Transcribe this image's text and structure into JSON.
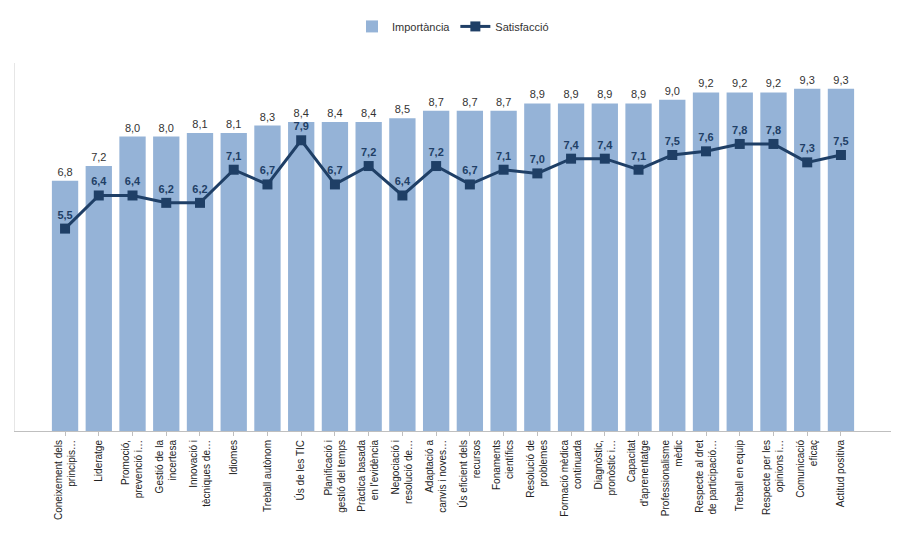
{
  "chart_data": {
    "type": "bar",
    "categories": [
      "Coneixement dels principis…",
      "Lideratge",
      "Promoció, prevenció i…",
      "Gestió de la incertesa",
      "Innovació i tècniques de…",
      "Idiomes",
      "Treball autònom",
      "Ús de les TIC",
      "Planificació i gestió del temps",
      "Pràctica basada en l'evidència",
      "Negociació i resolució de…",
      "Adaptació a canvis i noves…",
      "Ús eficient dels recursos",
      "Fonaments científics",
      "Resolució de problemes",
      "Formació mèdica continuada",
      "Diagnòstic, pronòstic i…",
      "Capacitat d'aprenentatge",
      "Professionalisme mèdic",
      "Respecte al dret de participació…",
      "Treball en equip",
      "Respecte per les opinions i…",
      "Comunicació eficaç",
      "Actitud positiva"
    ],
    "series": [
      {
        "name": "Importància",
        "type": "bar",
        "color": "#95b3d7",
        "values": [
          6.8,
          7.2,
          8.0,
          8.0,
          8.1,
          8.1,
          8.3,
          8.4,
          8.4,
          8.4,
          8.5,
          8.7,
          8.7,
          8.7,
          8.9,
          8.9,
          8.9,
          8.9,
          9.0,
          9.2,
          9.2,
          9.2,
          9.3,
          9.3
        ],
        "value_labels": [
          "6,8",
          "7,2",
          "8,0",
          "8,0",
          "8,1",
          "8,1",
          "8,3",
          "8,4",
          "8,4",
          "8,4",
          "8,5",
          "8,7",
          "8,7",
          "8,7",
          "8,9",
          "8,9",
          "8,9",
          "8,9",
          "9,0",
          "9,2",
          "9,2",
          "9,2",
          "9,3",
          "9,3"
        ]
      },
      {
        "name": "Satisfacció",
        "type": "line",
        "color": "#1f3f66",
        "marker": "square",
        "values": [
          5.5,
          6.4,
          6.4,
          6.2,
          6.2,
          7.1,
          6.7,
          7.9,
          6.7,
          7.2,
          6.4,
          7.2,
          6.7,
          7.1,
          7.0,
          7.4,
          7.4,
          7.1,
          7.5,
          7.6,
          7.8,
          7.8,
          7.3,
          7.5
        ],
        "value_labels": [
          "5,5",
          "6,4",
          "6,4",
          "6,2",
          "6,2",
          "7,1",
          "6,7",
          "7,9",
          "6,7",
          "7,2",
          "6,4",
          "7,2",
          "6,7",
          "7,1",
          "7,0",
          "7,4",
          "7,4",
          "7,1",
          "7,5",
          "7,6",
          "7,8",
          "7,8",
          "7,3",
          "7,5"
        ]
      }
    ],
    "ylim": [
      0,
      10
    ],
    "grid": false,
    "legend": "top",
    "data_labels": true,
    "tick_labels": "x"
  }
}
